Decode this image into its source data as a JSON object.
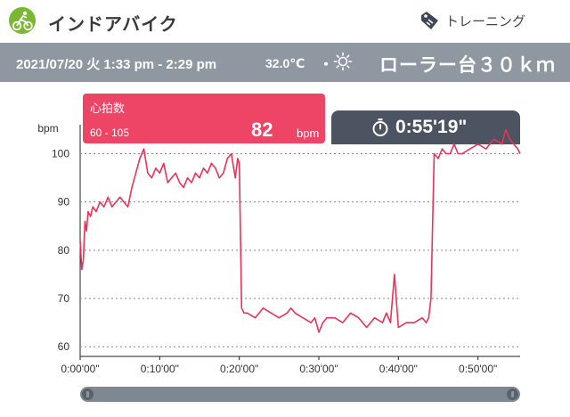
{
  "header": {
    "title": "インドアバイク",
    "app_icon": "cycling-icon",
    "training_label": "トレーニング",
    "training_icon": "tag-icon"
  },
  "info": {
    "datetime": "2021/07/20 火 1:33 pm - 2:29 pm",
    "temperature": "32.0℃",
    "separator": "・",
    "weather_icon": "sun-icon",
    "course": "ローラー台３０ｋｍ"
  },
  "heart_rate": {
    "label": "心拍数",
    "range": "60 - 105",
    "value": "82",
    "unit": "bpm",
    "color": "#ee4466"
  },
  "timer": {
    "icon": "stopwatch-icon",
    "duration": "0:55'19\""
  },
  "chart_data": {
    "type": "line",
    "ylabel": "bpm",
    "ylim": [
      58,
      106
    ],
    "yticks": [
      60,
      70,
      80,
      90,
      100
    ],
    "xticks": [
      "0:00'00\"",
      "0:10'00\"",
      "0:20'00\"",
      "0:30'00\"",
      "0:40'00\"",
      "0:50'00\""
    ],
    "xlim_minutes": [
      0,
      55.3
    ],
    "grid": "horizontal-dotted",
    "series": [
      {
        "color": "#e8335a",
        "x": [
          0,
          0.2,
          0.4,
          0.6,
          0.8,
          1.0,
          1.3,
          1.6,
          2.0,
          2.5,
          3.0,
          3.5,
          4.0,
          4.5,
          5.0,
          5.5,
          6.0,
          6.5,
          7.0,
          7.5,
          8.0,
          8.5,
          9.0,
          9.5,
          10.0,
          10.5,
          11.0,
          11.5,
          12.0,
          12.5,
          13.0,
          13.5,
          14.0,
          14.5,
          15.0,
          15.5,
          16.0,
          16.5,
          17.0,
          17.5,
          18.0,
          18.5,
          19.0,
          19.5,
          19.8,
          20.0,
          20.3,
          20.6,
          21.0,
          22.0,
          23.0,
          24.0,
          25.0,
          26.0,
          26.5,
          27.0,
          28.0,
          29.0,
          29.5,
          30.0,
          30.5,
          31.0,
          32.0,
          33.0,
          34.0,
          35.0,
          36.0,
          37.0,
          38.0,
          38.5,
          39.0,
          39.5,
          40.0,
          41.0,
          42.0,
          43.0,
          43.5,
          43.8,
          44.1,
          44.5,
          45.0,
          45.5,
          46.0,
          46.5,
          47.0,
          47.5,
          48.0,
          49.0,
          50.0,
          51.0,
          52.0,
          53.0,
          53.5,
          54.0,
          54.5,
          55.0,
          55.3
        ],
        "y": [
          82,
          76,
          78,
          86,
          84,
          88,
          87,
          89,
          88,
          90,
          89,
          91,
          89,
          90,
          91,
          90,
          89,
          93,
          96,
          99,
          101,
          96,
          95,
          97,
          96,
          98,
          94,
          95,
          96,
          94,
          93,
          95,
          94,
          96,
          95,
          97,
          96,
          98,
          97,
          95,
          96,
          99,
          100,
          95,
          99,
          98,
          68,
          67,
          67,
          66,
          68,
          67,
          66,
          67,
          68,
          67,
          66,
          65,
          66,
          63,
          65,
          66,
          66,
          65,
          67,
          66,
          64,
          66,
          65,
          67,
          65,
          75,
          64,
          65,
          65,
          66,
          65,
          66,
          70,
          100,
          99,
          101,
          100,
          100,
          102,
          100,
          100,
          101,
          102,
          101,
          103,
          102,
          105,
          103,
          102,
          101,
          100
        ]
      }
    ]
  },
  "slider": {
    "start_fraction": 0.0,
    "end_fraction": 1.0,
    "track_color": "#7f8791"
  }
}
